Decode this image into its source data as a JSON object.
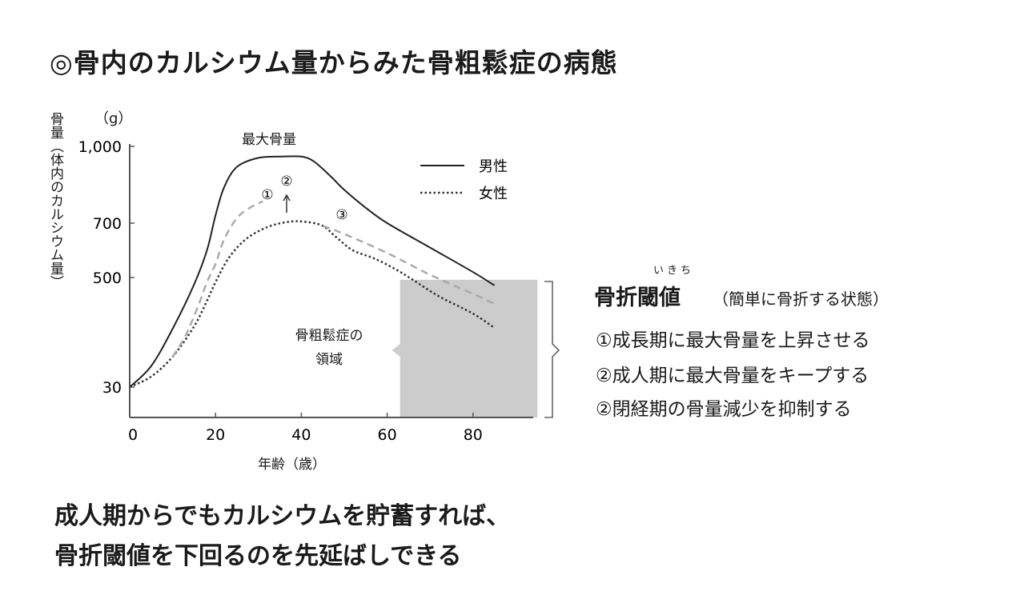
{
  "title": "◎骨内のカルシウム量からみた骨粗鬆症の病態",
  "chart_data": {
    "type": "line",
    "ylabel": "骨量（体内のカルシウム量）",
    "yunit": "（g）",
    "xlabel": "年齢（歳）",
    "yticks": [
      30,
      500,
      700,
      1000
    ],
    "ytick_labels": [
      "30",
      "500",
      "700",
      "1,000"
    ],
    "xticks": [
      0,
      20,
      40,
      60,
      80
    ],
    "xtick_labels": [
      "0",
      "20",
      "40",
      "60",
      "80"
    ],
    "legend": {
      "placement": "top-right",
      "items": [
        {
          "name": "男性",
          "style": "solid"
        },
        {
          "name": "女性",
          "style": "dotted"
        }
      ]
    },
    "series": [
      {
        "name": "男性",
        "style": "solid",
        "color": "#222222",
        "x": [
          0,
          5,
          10,
          15,
          18,
          20,
          22,
          25,
          30,
          35,
          40,
          43,
          47,
          50,
          55,
          60,
          70,
          80,
          85
        ],
        "y": [
          30,
          120,
          280,
          470,
          600,
          730,
          840,
          920,
          955,
          960,
          960,
          940,
          880,
          830,
          760,
          700,
          610,
          520,
          466
        ]
      },
      {
        "name": "女性",
        "style": "dotted",
        "color": "#333333",
        "x": [
          0,
          5,
          10,
          15,
          18,
          20,
          23,
          27,
          32,
          37,
          41,
          45,
          48,
          52,
          57,
          62,
          66,
          72,
          80,
          85
        ],
        "y": [
          30,
          75,
          160,
          290,
          400,
          480,
          570,
          640,
          685,
          705,
          705,
          690,
          650,
          600,
          570,
          530,
          490,
          420,
          345,
          284
        ]
      },
      {
        "style": "dashed",
        "color": "#aaaaaa",
        "x": [
          10,
          13,
          16,
          18,
          20,
          22,
          25,
          28,
          31
        ],
        "y": [
          160,
          250,
          380,
          480,
          550,
          640,
          720,
          760,
          785
        ]
      },
      {
        "style": "dashed",
        "color": "#aaaaaa",
        "x": [
          45,
          50,
          60,
          70,
          80,
          85
        ],
        "y": [
          690,
          660,
          590,
          510,
          430,
          387
        ]
      }
    ],
    "annotations": {
      "peak_label": "最大骨量",
      "marker_1": "①",
      "marker_2": "②",
      "marker_3": "③",
      "region_label_1": "骨粗鬆症の",
      "region_label_2": "領域"
    },
    "region": {
      "x_range": [
        63,
        95
      ],
      "y_max": 490,
      "color": "#cccccc"
    }
  },
  "threshold": {
    "ruby": "いきち",
    "title": "骨折閾値",
    "subtitle": "（簡単に骨折する状態）",
    "items": [
      "①成長期に最大骨量を上昇させる",
      "②成人期に最大骨量をキープする",
      "②閉経期の骨量減少を抑制する"
    ]
  },
  "conclusion": [
    "成人期からでもカルシウムを貯蓄すれば、",
    "骨折閾値を下回るのを先延ばしできる"
  ]
}
